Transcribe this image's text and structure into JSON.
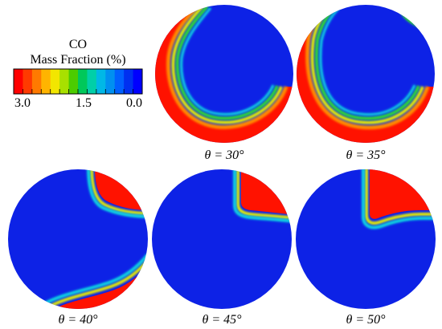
{
  "legend": {
    "title_line1": "CO",
    "title_line2": "Mass Fraction (%)",
    "tick_labels": [
      "3.0",
      "1.5",
      "0.0"
    ],
    "colors": [
      "#ff0000",
      "#ff3a00",
      "#ff7a00",
      "#ffb400",
      "#f2e600",
      "#a8e000",
      "#4ccc00",
      "#00c85a",
      "#00cfa8",
      "#00b8e6",
      "#0090f0",
      "#0060ff",
      "#0030f0",
      "#0000ff"
    ]
  },
  "panels": [
    {
      "label": "θ = 30°"
    },
    {
      "label": "θ = 35°"
    },
    {
      "label": "θ = 40°"
    },
    {
      "label": "θ = 45°"
    },
    {
      "label": "θ = 50°"
    }
  ],
  "colors": {
    "background_field": "#0d22e6",
    "high": "#ff1200",
    "mid_orange": "#ff8a00",
    "mid_yellow": "#e8f000",
    "mid_green": "#33dd33",
    "mid_cyan": "#10d8e0"
  }
}
